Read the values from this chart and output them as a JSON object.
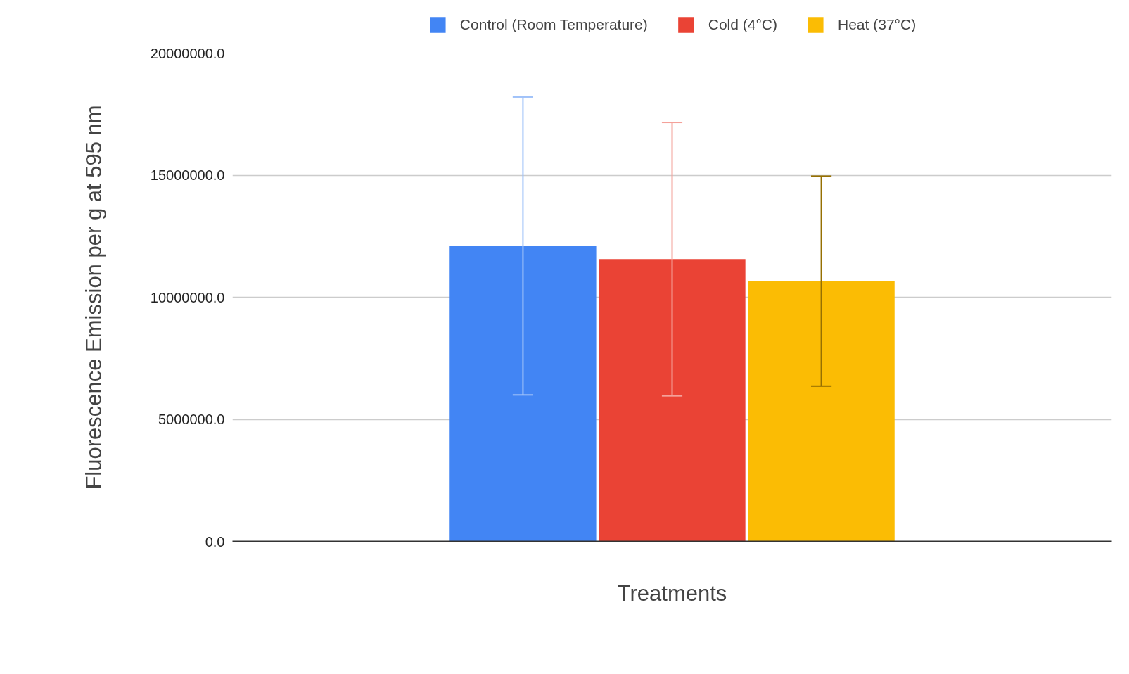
{
  "chart_data": {
    "type": "bar",
    "xlabel": "Treatments",
    "ylabel": "Fluorescence Emission per g at 595 nm",
    "categories": [
      null
    ],
    "series": [
      {
        "name": "Control (Room Temperature)",
        "color": "#4285f4",
        "values": [
          12100000
        ],
        "errors": [
          6100000
        ]
      },
      {
        "name": "Cold (4°C)",
        "color": "#ea4335",
        "values": [
          11560000
        ],
        "errors": [
          5600000
        ]
      },
      {
        "name": "Heat (37°C)",
        "color": "#fbbc04",
        "values": [
          10660000
        ],
        "errors": [
          4300000
        ]
      }
    ],
    "ylim": [
      0,
      20000000
    ],
    "yticks": [
      {
        "value": 0,
        "label": "0.0"
      },
      {
        "value": 5000000,
        "label": "5000000.0"
      },
      {
        "value": 10000000,
        "label": "10000000.0"
      },
      {
        "value": 15000000,
        "label": "15000000.0"
      },
      {
        "value": 20000000,
        "label": "20000000.0"
      }
    ],
    "grid": "y",
    "legend": "top"
  }
}
